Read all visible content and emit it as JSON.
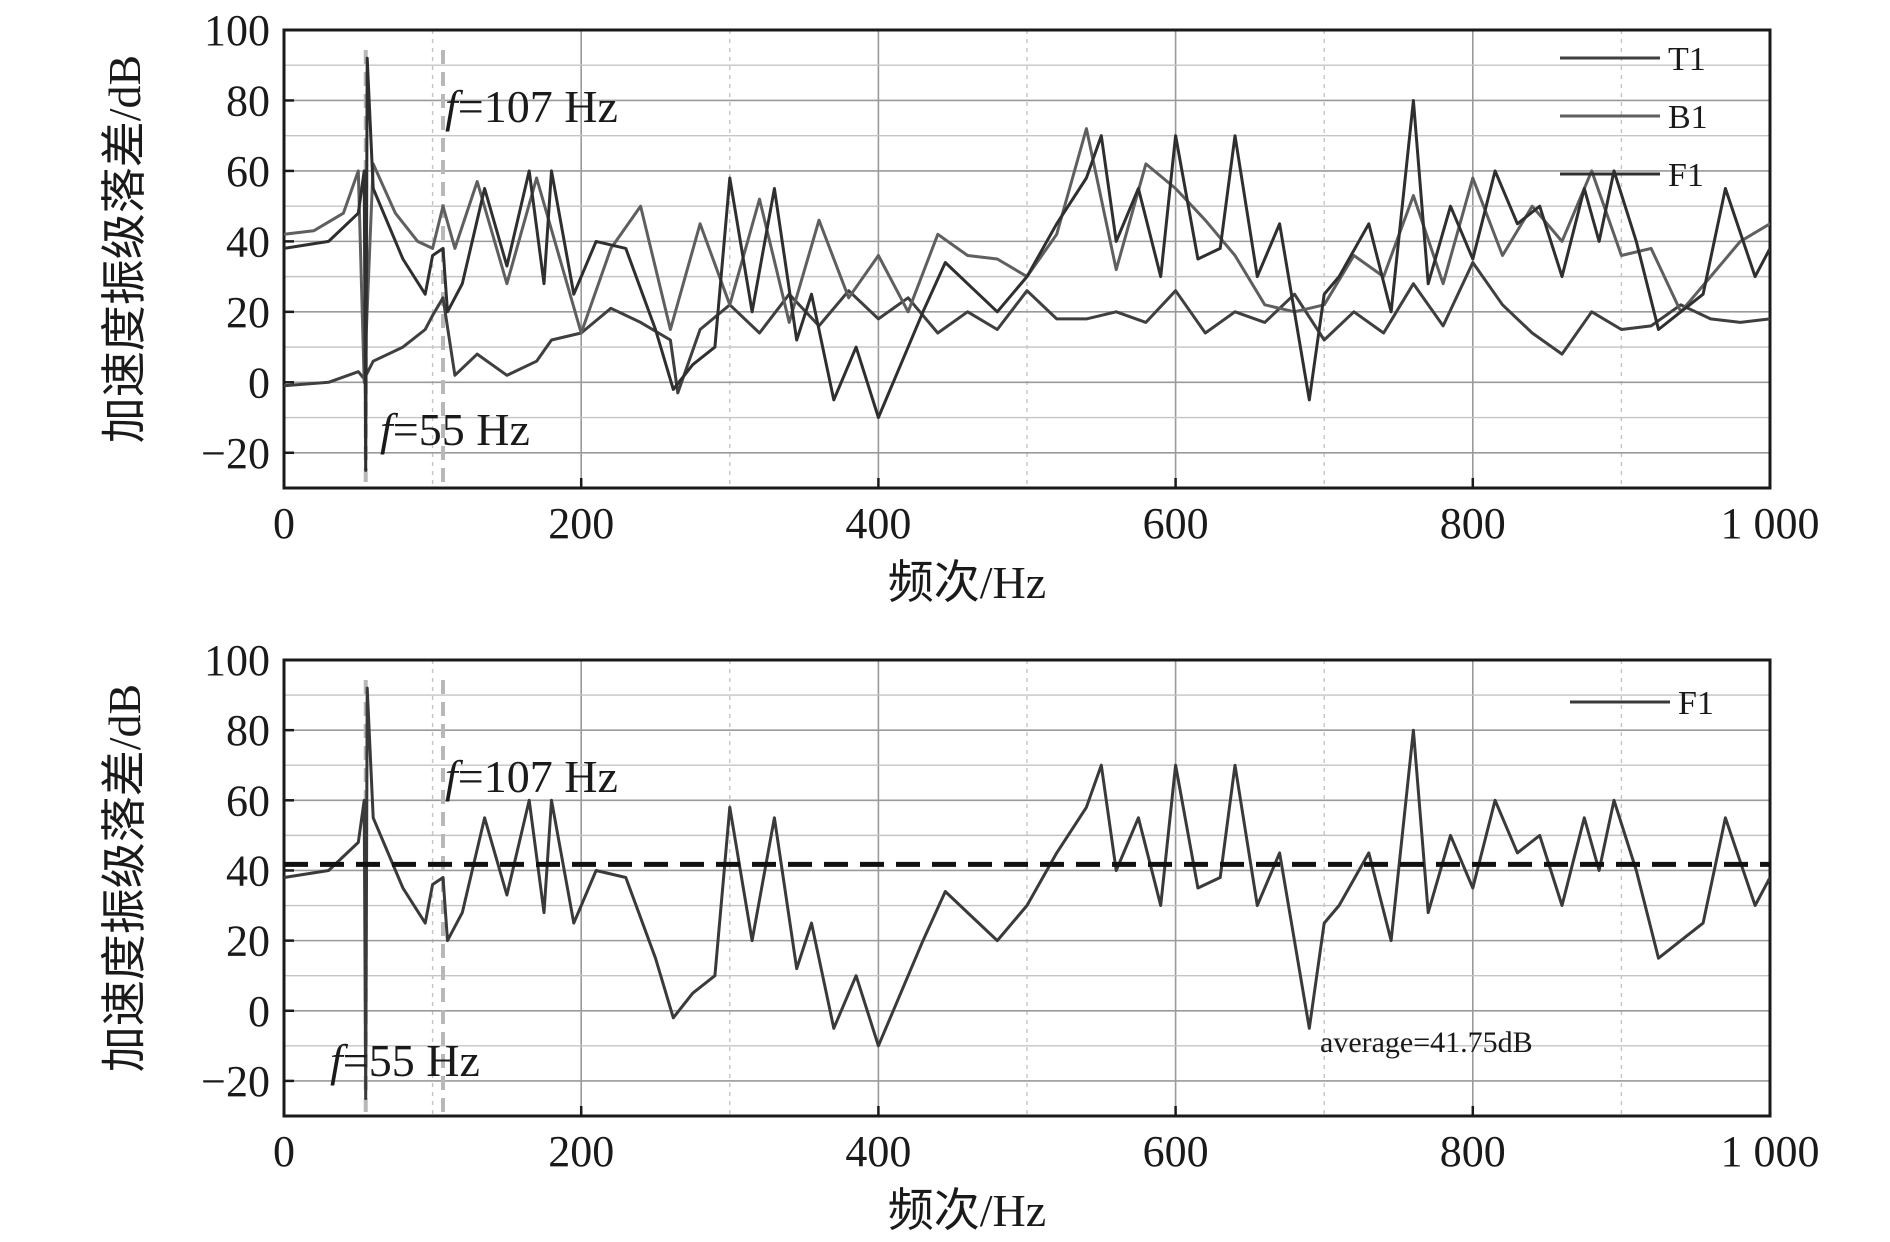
{
  "chart_data": [
    {
      "type": "line",
      "xlabel": "频次/Hz",
      "ylabel": "加速度振级落差/dB",
      "xlim": [
        0,
        1000
      ],
      "ylim": [
        -30,
        100
      ],
      "x_ticks": [
        0,
        200,
        400,
        600,
        800,
        1000
      ],
      "x_tick_labels": [
        "0",
        "200",
        "400",
        "600",
        "800",
        "1 000"
      ],
      "y_ticks": [
        -20,
        0,
        20,
        40,
        60,
        80,
        100
      ],
      "y_tick_labels": [
        "−20",
        "0",
        "20",
        "40",
        "60",
        "80",
        "100"
      ],
      "grid": true,
      "legend": "top-right",
      "annotations": [
        {
          "prefix": "f",
          "text": "=107 Hz",
          "x": 107
        },
        {
          "prefix": "f",
          "text": "=55 Hz",
          "x": 55
        }
      ],
      "series": [
        {
          "name": "T1",
          "color": "#3f3f3f",
          "x": [
            0,
            30,
            50,
            54,
            60,
            80,
            95,
            100,
            107,
            115,
            130,
            150,
            170,
            180,
            200,
            220,
            240,
            260,
            265,
            280,
            300,
            320,
            340,
            360,
            380,
            400,
            420,
            440,
            460,
            480,
            500,
            520,
            540,
            560,
            580,
            600,
            620,
            640,
            660,
            680,
            700,
            720,
            740,
            760,
            780,
            800,
            820,
            840,
            860,
            880,
            900,
            920,
            940,
            960,
            980,
            1000
          ],
          "y": [
            -1,
            0,
            3,
            1,
            6,
            10,
            15,
            19,
            24,
            2,
            8,
            2,
            6,
            12,
            14,
            21,
            17,
            12,
            -3,
            15,
            22,
            14,
            25,
            16,
            26,
            18,
            24,
            14,
            20,
            15,
            26,
            18,
            18,
            20,
            17,
            26,
            14,
            20,
            17,
            25,
            12,
            20,
            14,
            28,
            16,
            34,
            22,
            14,
            8,
            20,
            15,
            16,
            22,
            18,
            17,
            18
          ]
        },
        {
          "name": "B1",
          "color": "#5f5f5f",
          "x": [
            0,
            20,
            40,
            50,
            54,
            60,
            75,
            90,
            100,
            107,
            115,
            130,
            150,
            170,
            200,
            220,
            240,
            260,
            280,
            300,
            320,
            340,
            360,
            380,
            400,
            420,
            440,
            460,
            480,
            500,
            520,
            540,
            560,
            580,
            600,
            620,
            640,
            660,
            680,
            700,
            720,
            740,
            760,
            780,
            800,
            820,
            840,
            860,
            880,
            900,
            920,
            940,
            960,
            980,
            1000
          ],
          "y": [
            42,
            43,
            48,
            60,
            0,
            62,
            48,
            40,
            38,
            50,
            38,
            57,
            28,
            58,
            14,
            38,
            50,
            15,
            45,
            22,
            52,
            17,
            46,
            24,
            36,
            20,
            42,
            36,
            35,
            30,
            42,
            72,
            32,
            62,
            55,
            46,
            36,
            22,
            20,
            22,
            36,
            30,
            53,
            28,
            58,
            36,
            50,
            40,
            60,
            36,
            38,
            20,
            30,
            40,
            45
          ]
        },
        {
          "name": "F1",
          "color": "#2f2f2f",
          "x": [
            0,
            30,
            50,
            54,
            55,
            56,
            60,
            80,
            95,
            100,
            107,
            110,
            120,
            135,
            150,
            165,
            175,
            180,
            195,
            210,
            230,
            250,
            262,
            275,
            290,
            300,
            315,
            330,
            345,
            355,
            370,
            385,
            400,
            415,
            430,
            445,
            460,
            480,
            500,
            520,
            540,
            550,
            560,
            575,
            590,
            600,
            615,
            630,
            640,
            655,
            670,
            690,
            700,
            710,
            730,
            745,
            760,
            770,
            785,
            800,
            815,
            830,
            845,
            860,
            875,
            885,
            895,
            910,
            925,
            940,
            955,
            970,
            990,
            1000
          ],
          "y": [
            38,
            40,
            48,
            60,
            -25,
            92,
            55,
            35,
            25,
            36,
            38,
            20,
            28,
            55,
            33,
            60,
            28,
            60,
            25,
            40,
            38,
            15,
            -2,
            5,
            10,
            58,
            20,
            55,
            12,
            25,
            -5,
            10,
            -10,
            5,
            20,
            34,
            28,
            20,
            30,
            45,
            58,
            70,
            40,
            55,
            30,
            70,
            35,
            38,
            70,
            30,
            45,
            -5,
            25,
            30,
            45,
            20,
            80,
            28,
            50,
            35,
            60,
            45,
            50,
            30,
            55,
            40,
            60,
            40,
            15,
            20,
            25,
            55,
            30,
            38
          ]
        }
      ]
    },
    {
      "type": "line",
      "xlabel": "频次/Hz",
      "ylabel": "加速度振级落差/dB",
      "xlim": [
        0,
        1000
      ],
      "ylim": [
        -30,
        100
      ],
      "x_ticks": [
        0,
        200,
        400,
        600,
        800,
        1000
      ],
      "x_tick_labels": [
        "0",
        "200",
        "400",
        "600",
        "800",
        "1 000"
      ],
      "y_ticks": [
        -20,
        0,
        20,
        40,
        60,
        80,
        100
      ],
      "y_tick_labels": [
        "−20",
        "0",
        "20",
        "40",
        "60",
        "80",
        "100"
      ],
      "grid": true,
      "legend": "top-right",
      "average": {
        "value": 41.75,
        "label": "average=41.75dB"
      },
      "annotations": [
        {
          "prefix": "f",
          "text": "=107 Hz",
          "x": 107
        },
        {
          "prefix": "f",
          "text": "=55 Hz",
          "x": 55
        }
      ],
      "series": [
        {
          "name": "F1",
          "color": "#3a3a3a",
          "x": [
            0,
            30,
            50,
            54,
            55,
            56,
            60,
            80,
            95,
            100,
            107,
            110,
            120,
            135,
            150,
            165,
            175,
            180,
            195,
            210,
            230,
            250,
            262,
            275,
            290,
            300,
            315,
            330,
            345,
            355,
            370,
            385,
            400,
            415,
            430,
            445,
            460,
            480,
            500,
            520,
            540,
            550,
            560,
            575,
            590,
            600,
            615,
            630,
            640,
            655,
            670,
            690,
            700,
            710,
            730,
            745,
            760,
            770,
            785,
            800,
            815,
            830,
            845,
            860,
            875,
            885,
            895,
            910,
            925,
            940,
            955,
            970,
            990,
            1000
          ],
          "y": [
            38,
            40,
            48,
            60,
            -25,
            92,
            55,
            35,
            25,
            36,
            38,
            20,
            28,
            55,
            33,
            60,
            28,
            60,
            25,
            40,
            38,
            15,
            -2,
            5,
            10,
            58,
            20,
            55,
            12,
            25,
            -5,
            10,
            -10,
            5,
            20,
            34,
            28,
            20,
            30,
            45,
            58,
            70,
            40,
            55,
            30,
            70,
            35,
            38,
            70,
            30,
            45,
            -5,
            25,
            30,
            45,
            20,
            80,
            28,
            50,
            35,
            60,
            45,
            50,
            30,
            55,
            40,
            60,
            40,
            15,
            20,
            25,
            55,
            30,
            38
          ]
        }
      ]
    }
  ]
}
